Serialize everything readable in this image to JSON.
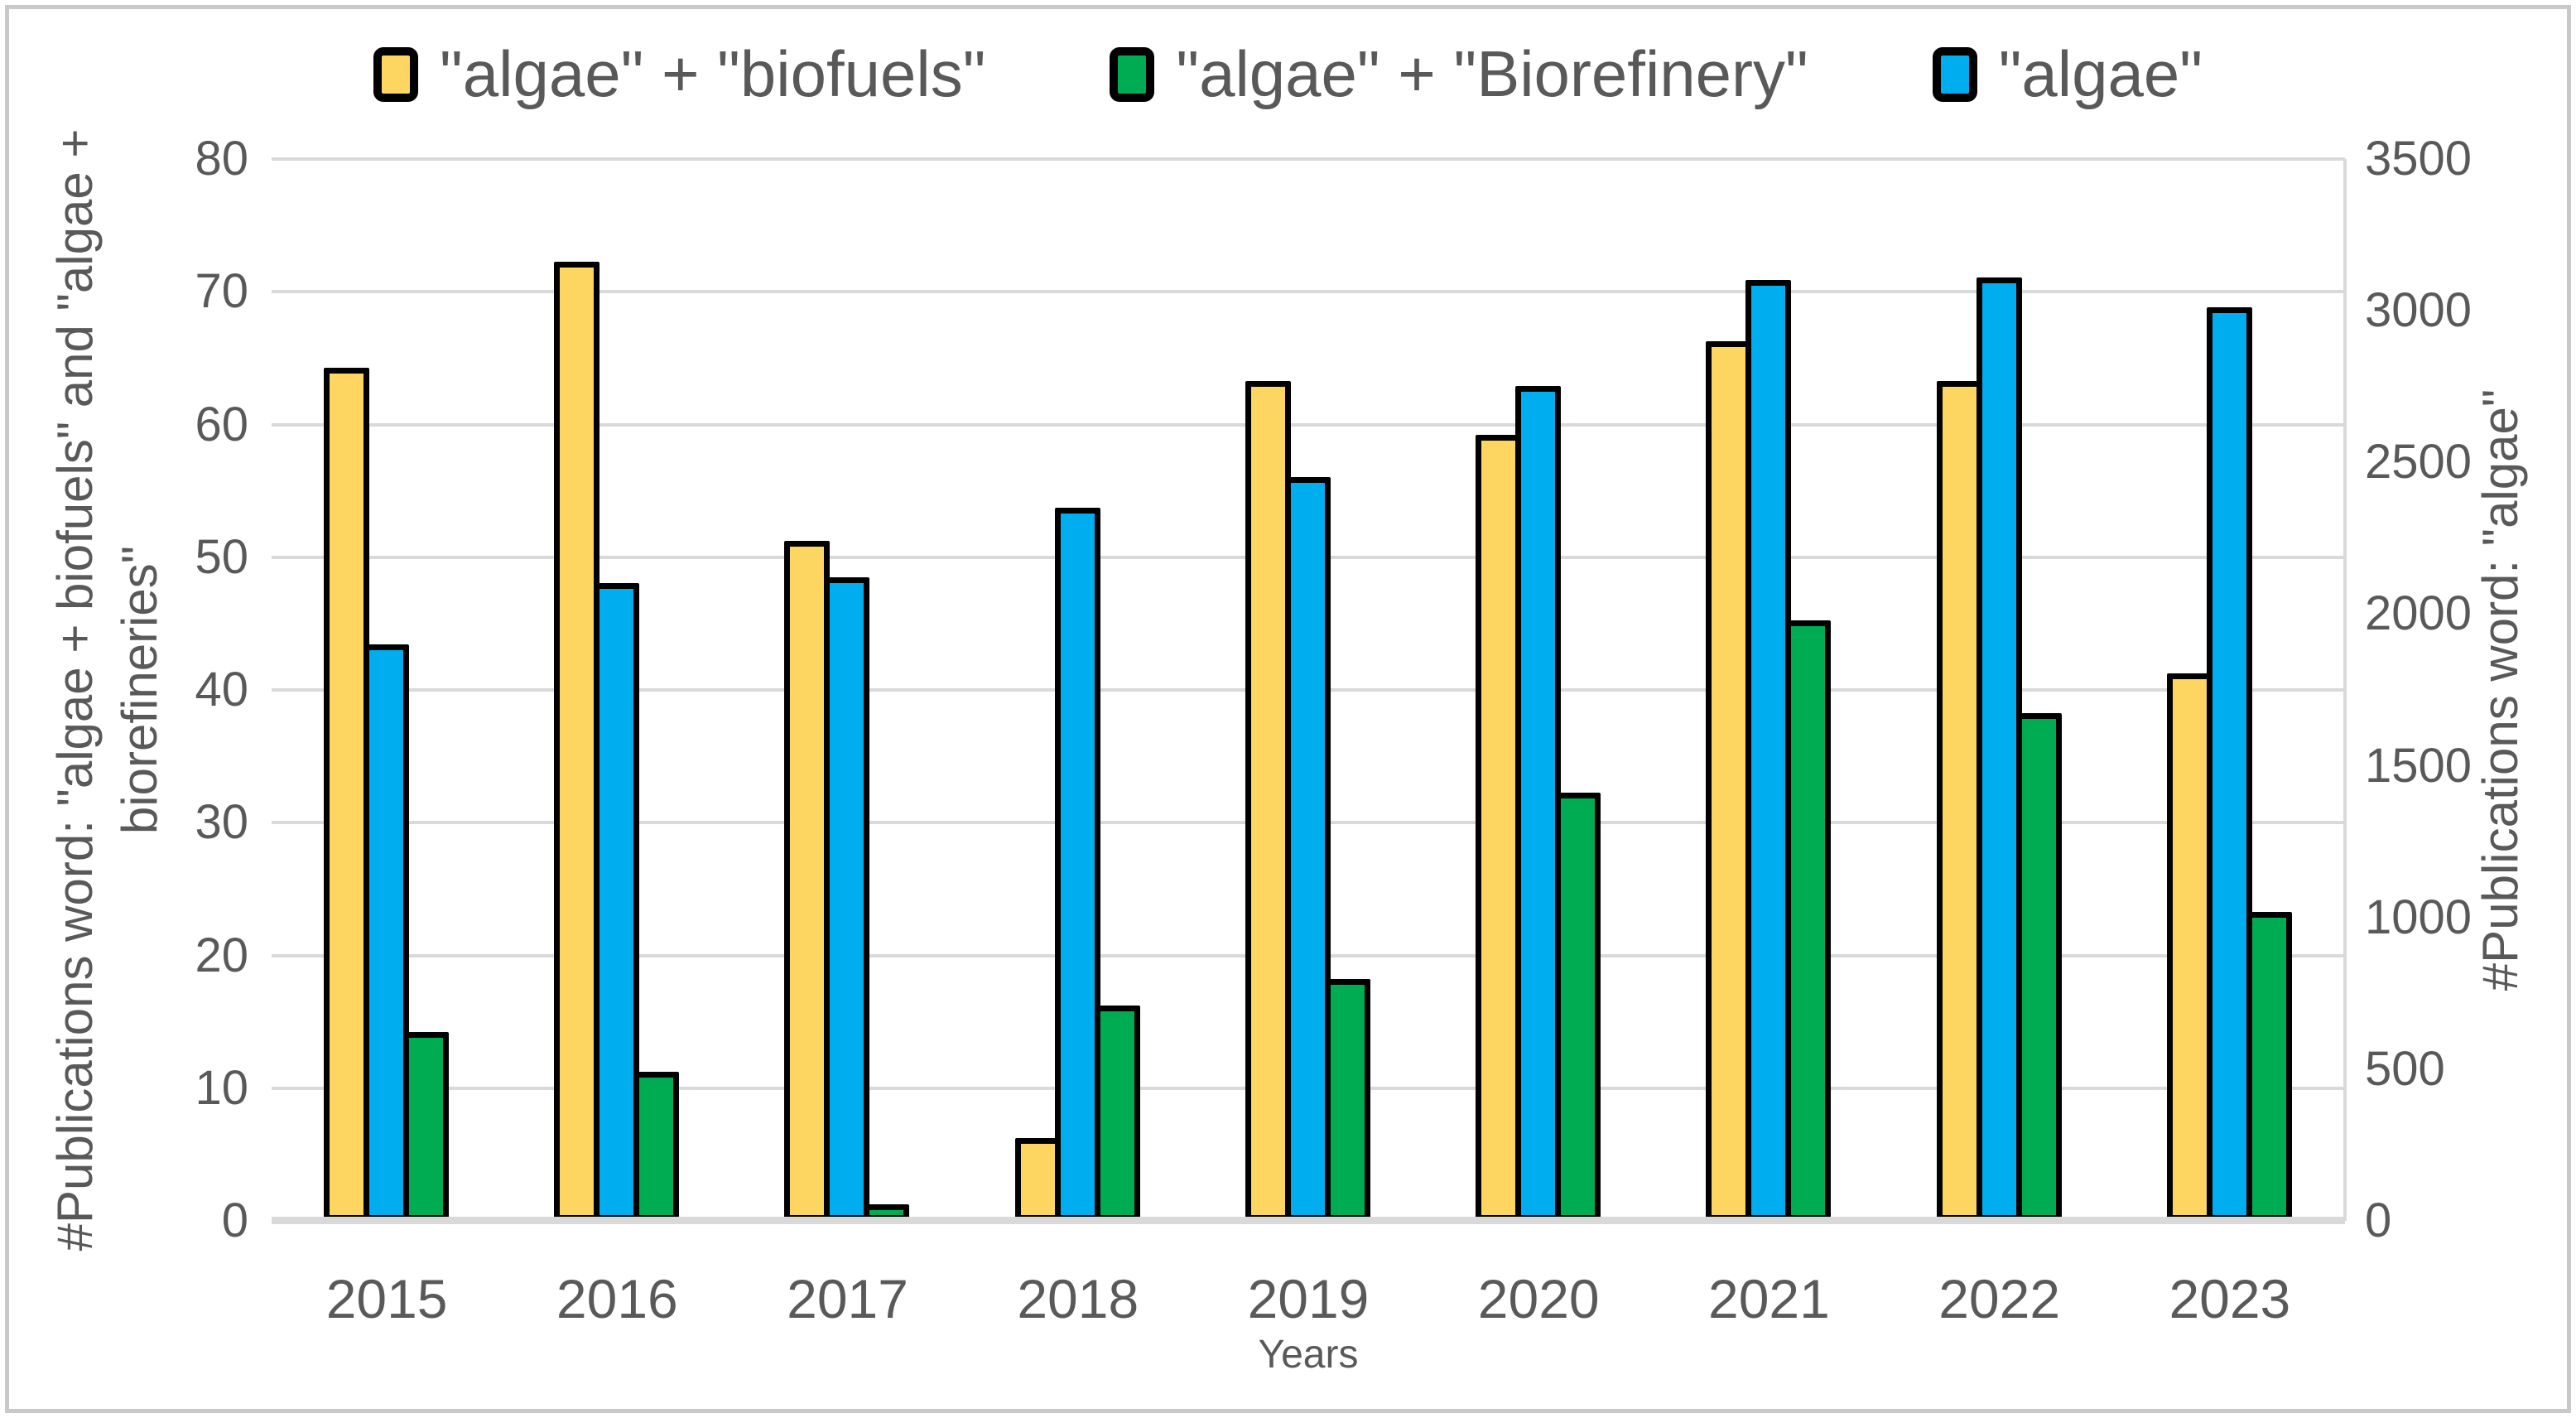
{
  "chart_data": {
    "type": "bar",
    "title": "",
    "categories": [
      "2015",
      "2016",
      "2017",
      "2018",
      "2019",
      "2020",
      "2021",
      "2022",
      "2023"
    ],
    "series": [
      {
        "name": "\"algae\" + \"biofuels\"",
        "axis": "left",
        "color": "#FDD662",
        "slot": 0,
        "z": 1,
        "values": [
          64,
          72,
          51,
          6,
          63,
          59,
          66,
          63,
          41
        ]
      },
      {
        "name": "\"algae\" + \"Biorefinery\"",
        "axis": "left",
        "color": "#00AC52",
        "slot": 2,
        "z": 3,
        "values": [
          14,
          11,
          1,
          16,
          18,
          32,
          45,
          38,
          23
        ]
      },
      {
        "name": "\"algae\"",
        "axis": "right",
        "color": "#00AEEF",
        "slot": 1,
        "z": 2,
        "values": [
          1890,
          2090,
          2110,
          2340,
          2440,
          2740,
          3090,
          3100,
          3000
        ]
      }
    ],
    "left_axis": {
      "title_line1": "#Publications word: \"algae + biofuels\" and \"algae +",
      "title_line2": "biorefineries\"",
      "ticks": [
        0,
        10,
        20,
        30,
        40,
        50,
        60,
        70,
        80
      ],
      "min": 0,
      "max": 80
    },
    "right_axis": {
      "title": "#Publications word: \"algae\"",
      "ticks": [
        0,
        500,
        1000,
        1500,
        2000,
        2500,
        3000,
        3500
      ],
      "min": 0,
      "max": 3500
    },
    "x_axis": {
      "title": "Years"
    },
    "legend_position": "top",
    "grid": true,
    "colors": {
      "grid": "#d9d9d9",
      "text": "#595959",
      "bar_border": "#000000",
      "frame": "#c9c9c9"
    }
  }
}
